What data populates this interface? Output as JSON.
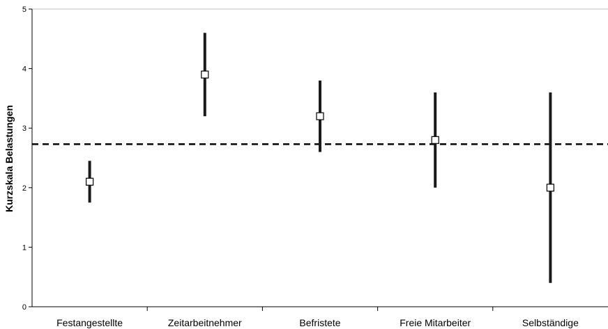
{
  "chart_data": {
    "type": "scatter",
    "ylabel": "Kurzskala Belastungen",
    "xlabel": "",
    "title": "",
    "ylim": [
      0,
      5
    ],
    "yticks": [
      "0",
      "1",
      "2",
      "3",
      "4",
      "5"
    ],
    "categories": [
      "Festangestellte",
      "Zeitarbeitnehmer",
      "Befristete",
      "Freie Mitarbeiter",
      "Selbständige"
    ],
    "points": [
      {
        "category": "Festangestellte",
        "value": 2.1,
        "low": 1.75,
        "high": 2.45
      },
      {
        "category": "Zeitarbeitnehmer",
        "value": 3.9,
        "low": 3.2,
        "high": 4.6
      },
      {
        "category": "Befristete",
        "value": 3.2,
        "low": 2.6,
        "high": 3.8
      },
      {
        "category": "Freie Mitarbeiter",
        "value": 2.8,
        "low": 2.0,
        "high": 3.6
      },
      {
        "category": "Selbständige",
        "value": 2.0,
        "low": 0.4,
        "high": 3.6
      }
    ],
    "reference_line": {
      "value": 2.73,
      "style": "dashed"
    },
    "grid": false,
    "colors": {
      "axis": "#000000",
      "error_bar": "#1a1a1a",
      "marker_fill": "#ffffff",
      "marker_stroke": "#000000",
      "top_border": "#bfbfbf",
      "reference_line": "#000000"
    }
  }
}
